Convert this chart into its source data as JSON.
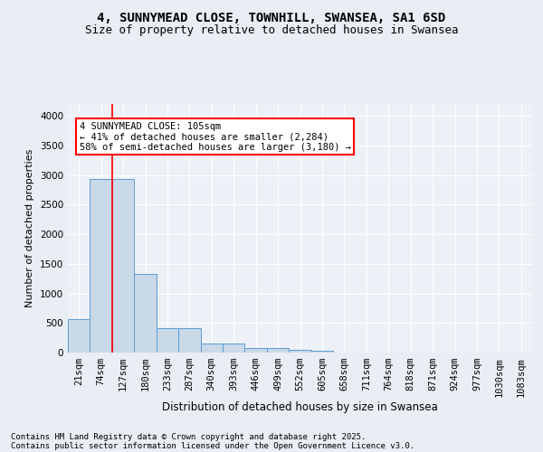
{
  "title_line1": "4, SUNNYMEAD CLOSE, TOWNHILL, SWANSEA, SA1 6SD",
  "title_line2": "Size of property relative to detached houses in Swansea",
  "xlabel": "Distribution of detached houses by size in Swansea",
  "ylabel": "Number of detached properties",
  "categories": [
    "21sqm",
    "74sqm",
    "127sqm",
    "180sqm",
    "233sqm",
    "287sqm",
    "340sqm",
    "393sqm",
    "446sqm",
    "499sqm",
    "552sqm",
    "605sqm",
    "658sqm",
    "711sqm",
    "764sqm",
    "818sqm",
    "871sqm",
    "924sqm",
    "977sqm",
    "1030sqm",
    "1083sqm"
  ],
  "values": [
    560,
    2940,
    2940,
    1330,
    410,
    410,
    155,
    155,
    75,
    75,
    50,
    30,
    0,
    0,
    0,
    0,
    0,
    0,
    0,
    0,
    0
  ],
  "bar_color": "#c9d9e8",
  "bar_edge_color": "#5b9bd5",
  "annotation_text_line1": "4 SUNNYMEAD CLOSE: 105sqm",
  "annotation_text_line2": "← 41% of detached houses are smaller (2,284)",
  "annotation_text_line3": "58% of semi-detached houses are larger (3,180) →",
  "vline_x": 1.5,
  "ylim": [
    0,
    4200
  ],
  "yticks": [
    0,
    500,
    1000,
    1500,
    2000,
    2500,
    3000,
    3500,
    4000
  ],
  "footer_line1": "Contains HM Land Registry data © Crown copyright and database right 2025.",
  "footer_line2": "Contains public sector information licensed under the Open Government Licence v3.0.",
  "background_color": "#e8eef4",
  "plot_background_color": "#edf1f7",
  "grid_color": "#ffffff",
  "title_fontsize": 10,
  "subtitle_fontsize": 9,
  "ylabel_fontsize": 8,
  "xlabel_fontsize": 8.5,
  "tick_fontsize": 7.5,
  "footer_fontsize": 6.5,
  "annot_fontsize": 7.5
}
